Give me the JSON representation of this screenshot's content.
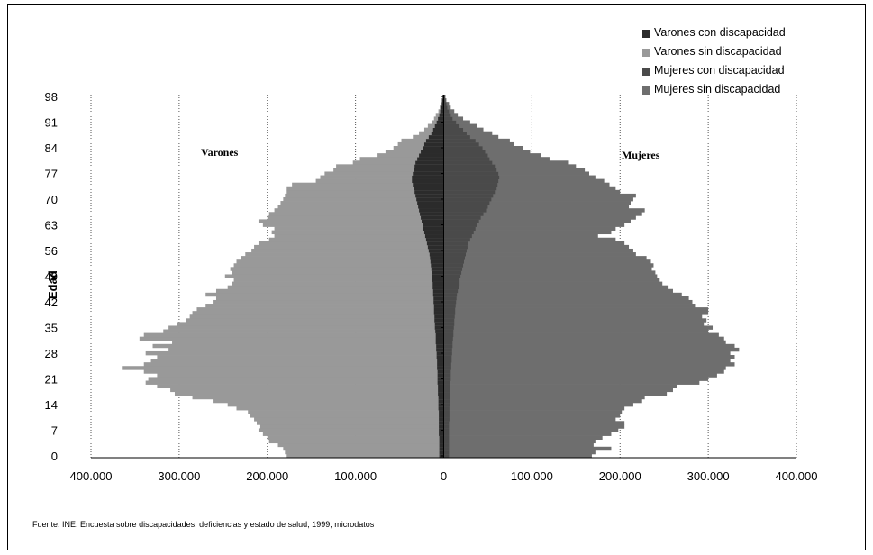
{
  "chart_data": {
    "type": "bar",
    "orientation": "horizontal-population-pyramid",
    "xlabel": "",
    "ylabel": "Edad",
    "xlim": [
      -400000,
      400000
    ],
    "x_tick_labels": [
      "400.000",
      "300.000",
      "200.000",
      "100.000",
      "0",
      "100.000",
      "200.000",
      "300.000",
      "400.000"
    ],
    "y_tick_labels": [
      "0",
      "7",
      "14",
      "21",
      "28",
      "35",
      "42",
      "49",
      "56",
      "63",
      "70",
      "77",
      "84",
      "91",
      "98"
    ],
    "grid": "vertical-dotted",
    "legend_position": "top-right",
    "panel_labels": {
      "left": "Varones",
      "right": "Mujeres"
    },
    "colors": {
      "varones_con": "#2b2b2b",
      "varones_sin": "#999999",
      "mujeres_con": "#4a4a4a",
      "mujeres_sin": "#6e6e6e"
    },
    "series": [
      {
        "name": "Varones  con discapacidad",
        "key": "varones_con"
      },
      {
        "name": "Varones  sin discapacidad",
        "key": "varones_sin"
      },
      {
        "name": "Mujeres  con discapacidad",
        "key": "mujeres_con"
      },
      {
        "name": "Mujeres sin discapacidad",
        "key": "mujeres_sin"
      }
    ],
    "ages": [
      0,
      1,
      2,
      3,
      4,
      5,
      6,
      7,
      8,
      9,
      10,
      11,
      12,
      13,
      14,
      15,
      16,
      17,
      18,
      19,
      20,
      21,
      22,
      23,
      24,
      25,
      26,
      27,
      28,
      29,
      30,
      31,
      32,
      33,
      34,
      35,
      36,
      37,
      38,
      39,
      40,
      41,
      42,
      43,
      44,
      45,
      46,
      47,
      48,
      49,
      50,
      51,
      52,
      53,
      54,
      55,
      56,
      57,
      58,
      59,
      60,
      61,
      62,
      63,
      64,
      65,
      66,
      67,
      68,
      69,
      70,
      71,
      72,
      73,
      74,
      75,
      76,
      77,
      78,
      79,
      80,
      81,
      82,
      83,
      84,
      85,
      86,
      87,
      88,
      89,
      90,
      91,
      92,
      93,
      94,
      95,
      96,
      97,
      98
    ],
    "varones_total": [
      178000,
      180000,
      182000,
      188000,
      198000,
      200000,
      205000,
      210000,
      208000,
      212000,
      215000,
      220000,
      222000,
      235000,
      245000,
      262000,
      285000,
      305000,
      310000,
      325000,
      338000,
      335000,
      325000,
      340000,
      365000,
      340000,
      332000,
      325000,
      338000,
      312000,
      330000,
      308000,
      345000,
      340000,
      318000,
      312000,
      302000,
      292000,
      288000,
      285000,
      280000,
      270000,
      262000,
      258000,
      270000,
      258000,
      245000,
      240000,
      238000,
      248000,
      240000,
      242000,
      238000,
      235000,
      230000,
      225000,
      218000,
      215000,
      210000,
      198000,
      192000,
      195000,
      192000,
      205000,
      210000,
      200000,
      198000,
      192000,
      188000,
      185000,
      182000,
      180000,
      178000,
      178000,
      172000,
      145000,
      140000,
      135000,
      125000,
      122000,
      103000,
      95000,
      75000,
      66000,
      57000,
      52000,
      48000,
      35000,
      28000,
      22000,
      18000,
      13000,
      11000,
      9000,
      6000,
      4500,
      3500,
      2500,
      1500
    ],
    "varones_con": [
      5000,
      5000,
      5000,
      5000,
      5000,
      5000,
      5500,
      5500,
      5500,
      5500,
      5500,
      5500,
      5500,
      6000,
      6000,
      6000,
      6000,
      6500,
      6500,
      6500,
      7000,
      7000,
      7000,
      7000,
      7500,
      7500,
      7500,
      8000,
      8000,
      8500,
      8500,
      9000,
      9000,
      9000,
      9500,
      10000,
      10000,
      10500,
      10500,
      11000,
      11000,
      11000,
      11500,
      11500,
      12000,
      12000,
      12500,
      12500,
      13000,
      13000,
      13500,
      14000,
      14500,
      15000,
      15500,
      16000,
      17000,
      18000,
      19000,
      20000,
      21000,
      22000,
      23000,
      24000,
      25000,
      26000,
      27000,
      28000,
      29000,
      30000,
      31000,
      32000,
      33000,
      34000,
      35000,
      36000,
      36000,
      35000,
      34000,
      33000,
      32000,
      30000,
      28000,
      26000,
      24000,
      22000,
      20000,
      17000,
      14000,
      12000,
      10000,
      8000,
      6500,
      5000,
      4000,
      3000,
      2000,
      1500,
      1000
    ],
    "mujeres_total": [
      168000,
      172000,
      190000,
      170000,
      172000,
      180000,
      190000,
      198000,
      205000,
      205000,
      195000,
      200000,
      202000,
      205000,
      215000,
      225000,
      228000,
      253000,
      260000,
      265000,
      290000,
      300000,
      310000,
      318000,
      320000,
      330000,
      325000,
      330000,
      325000,
      335000,
      330000,
      320000,
      318000,
      312000,
      300000,
      305000,
      295000,
      298000,
      293000,
      300000,
      300000,
      285000,
      282000,
      278000,
      270000,
      260000,
      255000,
      248000,
      245000,
      242000,
      240000,
      236000,
      238000,
      235000,
      230000,
      218000,
      215000,
      210000,
      205000,
      195000,
      175000,
      190000,
      195000,
      205000,
      212000,
      218000,
      225000,
      228000,
      210000,
      212000,
      215000,
      218000,
      200000,
      195000,
      188000,
      182000,
      172000,
      165000,
      160000,
      150000,
      142000,
      120000,
      110000,
      98000,
      90000,
      80000,
      75000,
      62000,
      55000,
      45000,
      38000,
      30000,
      22000,
      16000,
      12000,
      8000,
      6000,
      3000,
      2000
    ],
    "mujeres_con": [
      6000,
      6000,
      6000,
      6000,
      6000,
      6000,
      6000,
      6000,
      6000,
      6000,
      6500,
      6500,
      6500,
      6500,
      7000,
      7000,
      7000,
      7000,
      7500,
      7500,
      7500,
      8000,
      8000,
      8000,
      8500,
      8500,
      9000,
      9000,
      9500,
      9500,
      10000,
      10000,
      10500,
      11000,
      11000,
      11500,
      12000,
      12000,
      12500,
      13000,
      13000,
      13500,
      14000,
      14500,
      15000,
      16000,
      17000,
      18000,
      18000,
      19000,
      20000,
      21000,
      22000,
      23000,
      24000,
      25000,
      26000,
      27000,
      28000,
      30000,
      32000,
      34000,
      36000,
      38000,
      40000,
      42000,
      45000,
      48000,
      50000,
      52000,
      54000,
      56000,
      58000,
      60000,
      61000,
      62000,
      63000,
      62000,
      60000,
      58000,
      55000,
      52000,
      50000,
      47000,
      44000,
      40000,
      36000,
      30000,
      26000,
      22000,
      18000,
      14000,
      10000,
      8000,
      6000,
      4000,
      3000,
      2000,
      1500
    ]
  },
  "source_note": "Fuente: INE: Encuesta sobre discapacidades, deficiencias y estado de salud, 1999, microdatos"
}
